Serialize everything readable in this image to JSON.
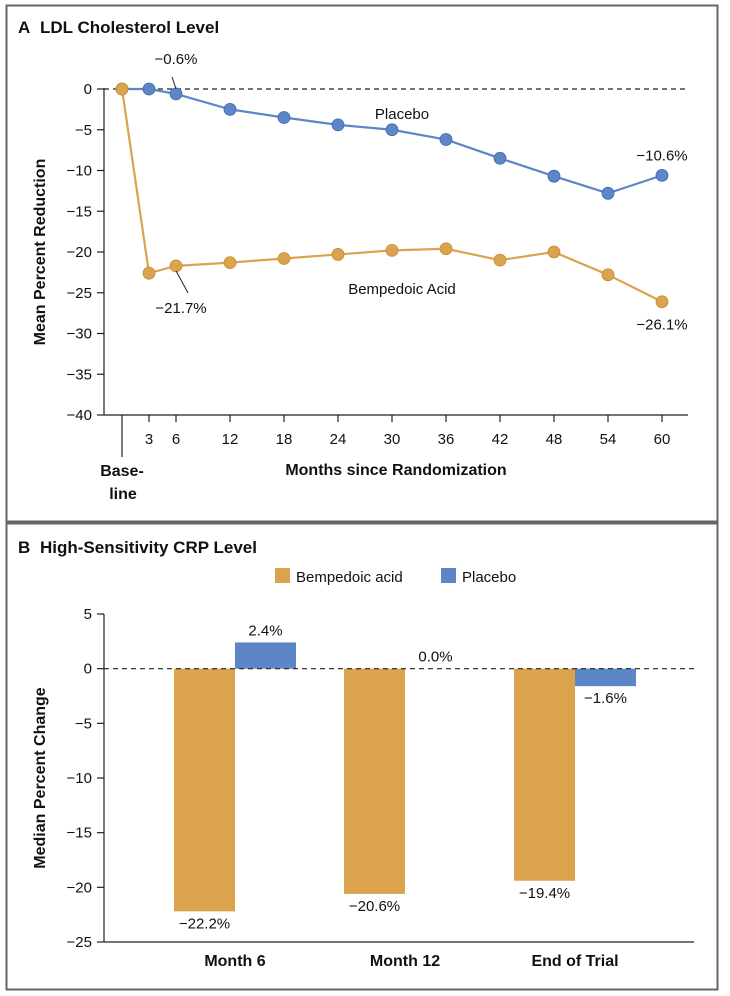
{
  "colors": {
    "frame": "#666666",
    "bempedoic": "#DCA34E",
    "bempedoic_edge": "#C68A33",
    "placebo": "#5D86C6",
    "placebo_edge": "#3E67A8",
    "text": "#111111"
  },
  "panels": {
    "a": {
      "letter": "A",
      "title": "LDL Cholesterol Level"
    },
    "b": {
      "letter": "B",
      "title": "High-Sensitivity CRP Level"
    }
  },
  "chart_data": [
    {
      "type": "line",
      "title": "LDL Cholesterol Level",
      "xlabel": "Months since Randomization",
      "ylabel": "Mean Percent Reduction",
      "x": [
        0,
        3,
        6,
        12,
        18,
        24,
        30,
        36,
        42,
        48,
        54,
        60
      ],
      "x_ticks": [
        3,
        6,
        12,
        18,
        24,
        30,
        36,
        42,
        48,
        54,
        60
      ],
      "x_tick_labels": [
        "3",
        "6",
        "12",
        "18",
        "24",
        "30",
        "36",
        "42",
        "48",
        "54",
        "60"
      ],
      "baseline_label": [
        "Base-",
        "line"
      ],
      "xlim": [
        -2.5,
        63
      ],
      "ylim": [
        -40,
        0
      ],
      "y_ticks": [
        0,
        -5,
        -10,
        -15,
        -20,
        -25,
        -30,
        -35,
        -40
      ],
      "y_tick_labels": [
        "0",
        "−5",
        "−10",
        "−15",
        "−20",
        "−25",
        "−30",
        "−35",
        "−40"
      ],
      "reference_line": 0,
      "series": [
        {
          "name": "Placebo",
          "color": "placebo",
          "values": [
            0,
            0,
            -0.6,
            -2.5,
            -3.5,
            -4.4,
            -5.0,
            -6.2,
            -8.5,
            -10.7,
            -12.8,
            -10.6
          ]
        },
        {
          "name": "Bempedoic Acid",
          "color": "bempedoic",
          "values": [
            0,
            -22.6,
            -21.7,
            -21.3,
            -20.8,
            -20.3,
            -19.8,
            -19.6,
            -21.0,
            -20.0,
            -22.8,
            -26.1
          ]
        }
      ],
      "annotations": [
        {
          "text": "−0.6%",
          "series": 0,
          "index": 2,
          "leader": true
        },
        {
          "text": "−10.6%",
          "series": 0,
          "index": 11,
          "leader": false
        },
        {
          "text": "−21.7%",
          "series": 1,
          "index": 2,
          "leader": true
        },
        {
          "text": "−26.1%",
          "series": 1,
          "index": 11,
          "leader": false
        }
      ],
      "series_labels": [
        {
          "text": "Placebo",
          "series": 0
        },
        {
          "text": "Bempedoic Acid",
          "series": 1
        }
      ]
    },
    {
      "type": "bar",
      "title": "High-Sensitivity CRP Level",
      "xlabel": "",
      "ylabel": "Median Percent Change",
      "categories": [
        "Month 6",
        "Month 12",
        "End of Trial"
      ],
      "ylim": [
        -25,
        5
      ],
      "y_ticks": [
        5,
        0,
        -5,
        -10,
        -15,
        -20,
        -25
      ],
      "y_tick_labels": [
        "5",
        "0",
        "−5",
        "−10",
        "−15",
        "−20",
        "−25"
      ],
      "reference_line": 0,
      "legend_position": "top-center",
      "series": [
        {
          "name": "Bempedoic acid",
          "color": "bempedoic",
          "values": [
            -22.2,
            -20.6,
            -19.4
          ],
          "labels": [
            "−22.2%",
            "−20.6%",
            "−19.4%"
          ]
        },
        {
          "name": "Placebo",
          "color": "placebo",
          "values": [
            2.4,
            0.0,
            -1.6
          ],
          "labels": [
            "2.4%",
            "0.0%",
            "−1.6%"
          ]
        }
      ]
    }
  ]
}
